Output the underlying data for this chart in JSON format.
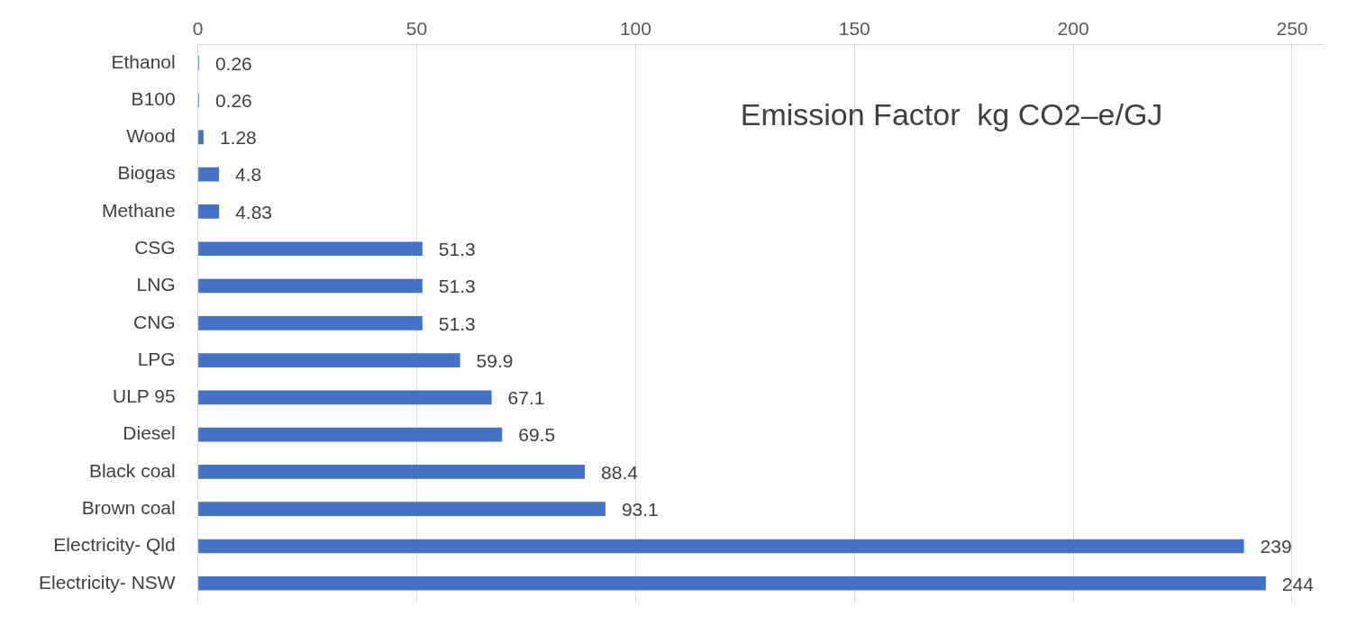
{
  "chart_data": {
    "type": "bar",
    "orientation": "horizontal",
    "title": "Emission Factor  kg CO2–e/GJ",
    "categories": [
      "Ethanol",
      "B100",
      "Wood",
      "Biogas",
      "Methane",
      "CSG",
      "LNG",
      "CNG",
      "LPG",
      "ULP 95",
      "Diesel",
      "Black coal",
      "Brown coal",
      "Electricity- Qld",
      "Electricity- NSW"
    ],
    "values": [
      0.26,
      0.26,
      1.28,
      4.8,
      4.83,
      51.3,
      51.3,
      51.3,
      59.9,
      67.1,
      69.5,
      88.4,
      93.1,
      239,
      244
    ],
    "color": "#4472c4",
    "xlim": [
      0,
      257
    ],
    "xticks": [
      0,
      50,
      100,
      150,
      200,
      250
    ],
    "grid": "x",
    "data_labels": true
  }
}
